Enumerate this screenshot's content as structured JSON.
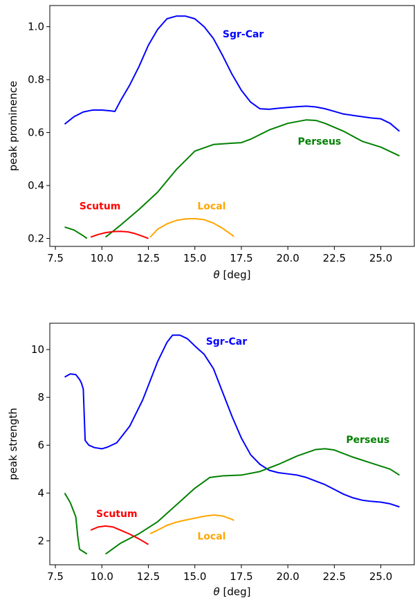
{
  "chart_data": [
    {
      "type": "line",
      "xlabel_math": "θ",
      "xlabel_unit": " [deg]",
      "ylabel": "peak prominence",
      "xlim": [
        7.2,
        26.8
      ],
      "ylim": [
        0.17,
        1.08
      ],
      "xticks": [
        7.5,
        10.0,
        12.5,
        15.0,
        17.5,
        20.0,
        22.5,
        25.0
      ],
      "xtick_labels": [
        "7.5",
        "10.0",
        "12.5",
        "15.0",
        "17.5",
        "20.0",
        "22.5",
        "25.0"
      ],
      "yticks": [
        0.2,
        0.4,
        0.6,
        0.8,
        1.0
      ],
      "ytick_labels": [
        "0.2",
        "0.4",
        "0.6",
        "0.8",
        "1.0"
      ],
      "grid": false,
      "series": [
        {
          "name": "Sgr-Car",
          "color": "#0000ff",
          "label_at": [
            17.6,
            0.96
          ],
          "x": [
            8.0,
            8.5,
            9.0,
            9.5,
            10.0,
            10.5,
            10.7,
            11.0,
            11.5,
            12.0,
            12.5,
            13.0,
            13.5,
            14.0,
            14.5,
            15.0,
            15.5,
            16.0,
            16.5,
            17.0,
            17.5,
            18.0,
            18.5,
            19.0,
            19.5,
            20.0,
            20.5,
            21.0,
            21.5,
            22.0,
            22.5,
            23.0,
            23.5,
            24.0,
            24.5,
            25.0,
            25.5,
            26.0
          ],
          "y": [
            0.632,
            0.66,
            0.678,
            0.685,
            0.685,
            0.682,
            0.68,
            0.72,
            0.78,
            0.85,
            0.93,
            0.99,
            1.03,
            1.04,
            1.04,
            1.03,
            1.0,
            0.955,
            0.89,
            0.82,
            0.76,
            0.715,
            0.69,
            0.688,
            0.692,
            0.695,
            0.698,
            0.7,
            0.697,
            0.69,
            0.68,
            0.67,
            0.665,
            0.66,
            0.655,
            0.652,
            0.635,
            0.605
          ]
        },
        {
          "name": "Perseus",
          "color": "#008000",
          "label_at": [
            21.7,
            0.555
          ],
          "segments": [
            {
              "x": [
                8.0,
                8.5,
                9.0,
                9.2
              ],
              "y": [
                0.243,
                0.232,
                0.21,
                0.2
              ]
            },
            {
              "x": [
                10.2,
                11.0,
                12.0,
                13.0,
                14.0,
                15.0,
                16.0,
                17.0,
                17.5,
                18.0,
                19.0,
                20.0,
                21.0,
                21.5,
                22.0,
                23.0,
                24.0,
                25.0,
                26.0
              ],
              "y": [
                0.205,
                0.25,
                0.31,
                0.375,
                0.46,
                0.53,
                0.555,
                0.56,
                0.562,
                0.575,
                0.61,
                0.635,
                0.648,
                0.646,
                0.635,
                0.605,
                0.567,
                0.545,
                0.512
              ]
            }
          ]
        },
        {
          "name": "Scutum",
          "color": "#ff0000",
          "label_at": [
            9.9,
            0.31
          ],
          "x": [
            9.4,
            9.8,
            10.2,
            10.6,
            11.0,
            11.4,
            11.8,
            12.2,
            12.5
          ],
          "y": [
            0.205,
            0.215,
            0.222,
            0.226,
            0.227,
            0.225,
            0.218,
            0.208,
            0.2
          ]
        },
        {
          "name": "Local",
          "color": "#ffa500",
          "label_at": [
            15.9,
            0.31
          ],
          "x": [
            12.6,
            13.0,
            13.5,
            14.0,
            14.5,
            15.0,
            15.5,
            16.0,
            16.5,
            17.0,
            17.1
          ],
          "y": [
            0.205,
            0.235,
            0.255,
            0.268,
            0.274,
            0.275,
            0.271,
            0.258,
            0.238,
            0.213,
            0.207
          ]
        }
      ]
    },
    {
      "type": "line",
      "xlabel_math": "θ",
      "xlabel_unit": " [deg]",
      "ylabel": "peak strength",
      "xlim": [
        7.2,
        26.8
      ],
      "ylim": [
        1.0,
        11.1
      ],
      "xticks": [
        7.5,
        10.0,
        12.5,
        15.0,
        17.5,
        20.0,
        22.5,
        25.0
      ],
      "xtick_labels": [
        "7.5",
        "10.0",
        "12.5",
        "15.0",
        "17.5",
        "20.0",
        "22.5",
        "25.0"
      ],
      "yticks": [
        2,
        4,
        6,
        8,
        10
      ],
      "ytick_labels": [
        "2",
        "4",
        "6",
        "8",
        "10"
      ],
      "grid": false,
      "series": [
        {
          "name": "Sgr-Car",
          "color": "#0000ff",
          "label_at": [
            16.7,
            10.2
          ],
          "x": [
            8.0,
            8.3,
            8.6,
            8.8,
            8.9,
            9.0,
            9.1,
            9.3,
            9.6,
            10.0,
            10.3,
            10.8,
            11.5,
            12.2,
            13.0,
            13.5,
            13.8,
            14.2,
            14.6,
            15.0,
            15.5,
            16.0,
            16.5,
            17.0,
            17.5,
            18.0,
            18.5,
            19.0,
            19.5,
            20.0,
            20.5,
            21.0,
            21.5,
            22.0,
            22.5,
            23.0,
            23.5,
            24.0,
            24.5,
            25.0,
            25.5,
            26.0
          ],
          "y": [
            8.85,
            8.98,
            8.95,
            8.75,
            8.6,
            8.35,
            6.2,
            6.0,
            5.9,
            5.85,
            5.92,
            6.1,
            6.8,
            7.9,
            9.5,
            10.3,
            10.6,
            10.6,
            10.45,
            10.15,
            9.8,
            9.2,
            8.2,
            7.2,
            6.3,
            5.6,
            5.2,
            4.95,
            4.85,
            4.8,
            4.75,
            4.65,
            4.5,
            4.35,
            4.15,
            3.95,
            3.8,
            3.7,
            3.65,
            3.62,
            3.55,
            3.42
          ]
        },
        {
          "name": "Perseus",
          "color": "#008000",
          "label_at": [
            24.3,
            6.1
          ],
          "segments": [
            {
              "x": [
                8.0,
                8.3,
                8.6,
                8.7,
                8.8,
                9.0,
                9.2
              ],
              "y": [
                4.0,
                3.6,
                3.0,
                2.2,
                1.65,
                1.55,
                1.45
              ]
            },
            {
              "x": [
                10.2,
                11.0,
                12.0,
                13.0,
                14.0,
                15.0,
                15.8,
                16.5,
                17.5,
                18.5,
                19.5,
                20.5,
                21.5,
                22.0,
                22.5,
                23.5,
                24.5,
                25.5,
                26.0
              ],
              "y": [
                1.45,
                1.9,
                2.3,
                2.8,
                3.5,
                4.2,
                4.65,
                4.72,
                4.75,
                4.9,
                5.2,
                5.55,
                5.82,
                5.85,
                5.8,
                5.5,
                5.25,
                5.0,
                4.75
              ]
            }
          ]
        },
        {
          "name": "Scutum",
          "color": "#ff0000",
          "label_at": [
            10.8,
            3.0
          ],
          "x": [
            9.4,
            9.8,
            10.2,
            10.6,
            11.0,
            11.5,
            12.0,
            12.5
          ],
          "y": [
            2.45,
            2.58,
            2.62,
            2.58,
            2.45,
            2.28,
            2.08,
            1.85
          ]
        },
        {
          "name": "Local",
          "color": "#ffa500",
          "label_at": [
            15.9,
            2.05
          ],
          "x": [
            12.6,
            13.0,
            13.5,
            14.0,
            14.5,
            15.0,
            15.5,
            16.0,
            16.5,
            17.0,
            17.1
          ],
          "y": [
            2.3,
            2.45,
            2.65,
            2.78,
            2.87,
            2.95,
            3.03,
            3.08,
            3.04,
            2.9,
            2.85
          ]
        }
      ]
    }
  ]
}
